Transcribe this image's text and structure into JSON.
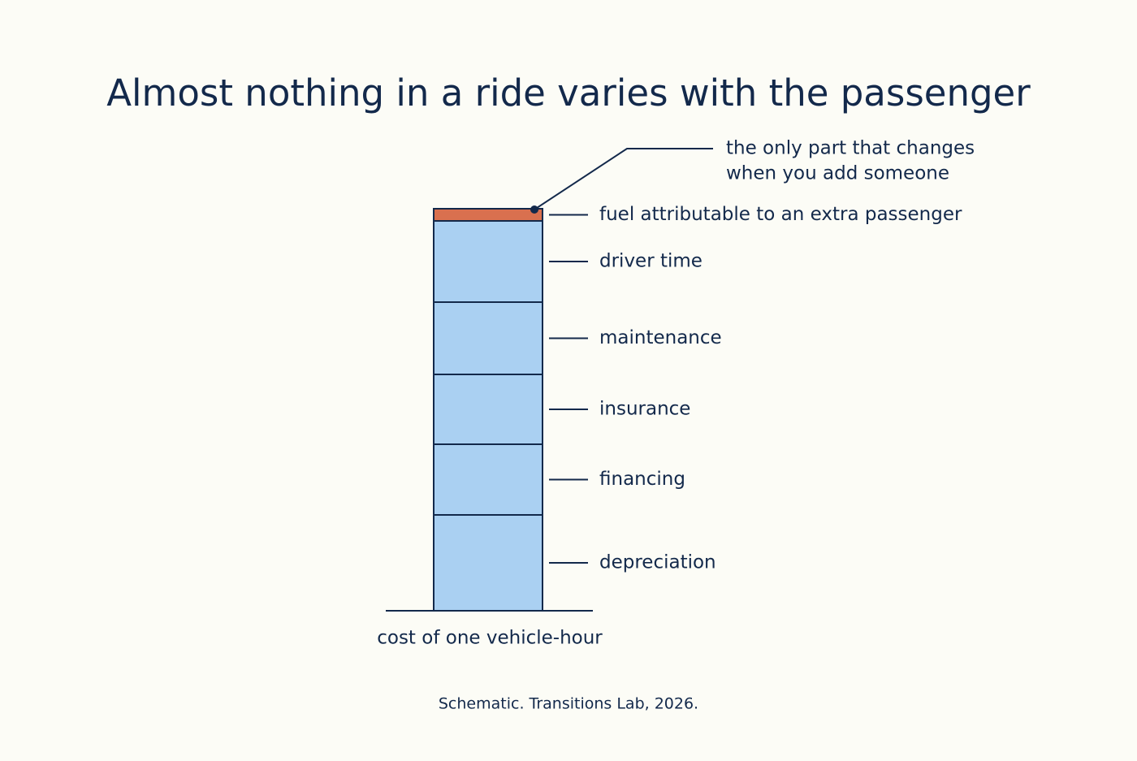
{
  "chart_data": {
    "type": "stacked_bar",
    "title": "Almost nothing in a ride varies with the passenger",
    "categories": [
      "depreciation",
      "financing",
      "insurance",
      "maintenance",
      "driver time",
      "fuel attributable to an extra passenger"
    ],
    "values": [
      118,
      87,
      86,
      89,
      100,
      15
    ],
    "colors": [
      "#aad0f2",
      "#aad0f2",
      "#aad0f2",
      "#aad0f2",
      "#aad0f2",
      "#d9704f"
    ],
    "xlabel": "cost of one vehicle-hour",
    "annotation": [
      "the only part that changes",
      "when you add someone"
    ],
    "source": "Schematic. Transitions Lab, 2026."
  }
}
